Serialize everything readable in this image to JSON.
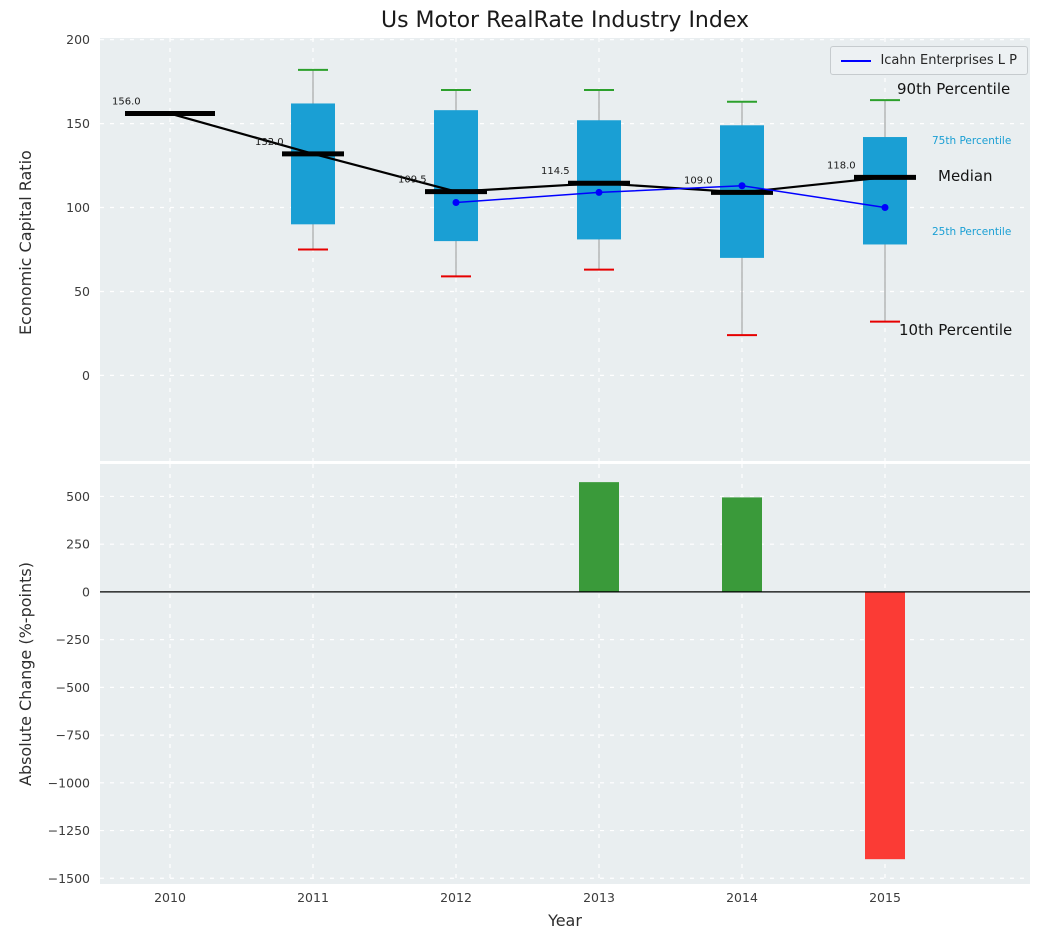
{
  "title": "Us Motor RealRate Industry Index",
  "legend": {
    "label": "Icahn Enterprises L P"
  },
  "axes": {
    "top_ylabel": "Economic Capital Ratio",
    "bottom_ylabel": "Absolute Change (%-points)",
    "xlabel": "Year"
  },
  "annotations": {
    "p90": "90th Percentile",
    "p75": "75th Percentile",
    "median": "Median",
    "p25": "25th Percentile",
    "p10": "10th Percentile"
  },
  "colors": {
    "plot_bg": "#e9eef0",
    "grid": "#ffffff",
    "box_fill": "#1a9fd4",
    "percentile_text": "#1a9fd4",
    "cap_high": "#2ca02c",
    "cap_low": "#e60000",
    "whisker": "#999999",
    "median_line": "#000000",
    "company_line": "#0000ff",
    "bar_positive": "#3a9a3a",
    "bar_negative": "#fb3b35",
    "zero_line": "#000000",
    "tick_text": "#3c3c3c",
    "value_label_text": "#1a1a1a"
  },
  "chart_data": [
    {
      "type": "boxplot",
      "title": "Us Motor RealRate Industry Index",
      "ylabel": "Economic Capital Ratio",
      "categories": [
        2010,
        2011,
        2012,
        2013,
        2014,
        2015
      ],
      "yticks": [
        200,
        150,
        100,
        50,
        0
      ],
      "ylim": [
        -51,
        201
      ],
      "grid": true,
      "legend_position": "upper right",
      "boxes": [
        {
          "year": 2010,
          "median": 156.0,
          "q1": null,
          "q3": null,
          "p10": null,
          "p90": null
        },
        {
          "year": 2011,
          "median": 132.0,
          "q1": 90,
          "q3": 162,
          "p10": 75,
          "p90": 182
        },
        {
          "year": 2012,
          "median": 109.5,
          "q1": 80,
          "q3": 158,
          "p10": 59,
          "p90": 170
        },
        {
          "year": 2013,
          "median": 114.5,
          "q1": 81,
          "q3": 152,
          "p10": 63,
          "p90": 170
        },
        {
          "year": 2014,
          "median": 109.0,
          "q1": 70,
          "q3": 149,
          "p10": 24,
          "p90": 163
        },
        {
          "year": 2015,
          "median": 118.0,
          "q1": 78,
          "q3": 142,
          "p10": 32,
          "p90": 164
        }
      ],
      "median_labels": [
        "156.0",
        "132.0",
        "109.5",
        "114.5",
        "109.0",
        "118.0"
      ],
      "series": [
        {
          "name": "Icahn Enterprises L P",
          "x": [
            2012,
            2013,
            2014,
            2015
          ],
          "values": [
            103,
            109,
            113,
            100
          ]
        }
      ]
    },
    {
      "type": "bar",
      "ylabel": "Absolute Change (%-points)",
      "xlabel": "Year",
      "categories": [
        2010,
        2011,
        2012,
        2013,
        2014,
        2015
      ],
      "values": [
        null,
        null,
        null,
        575,
        495,
        -1400
      ],
      "yticks": [
        500,
        250,
        0,
        -250,
        -500,
        -750,
        -1000,
        -1250,
        -1500
      ],
      "ylim": [
        -1530,
        670
      ],
      "grid": true
    }
  ]
}
